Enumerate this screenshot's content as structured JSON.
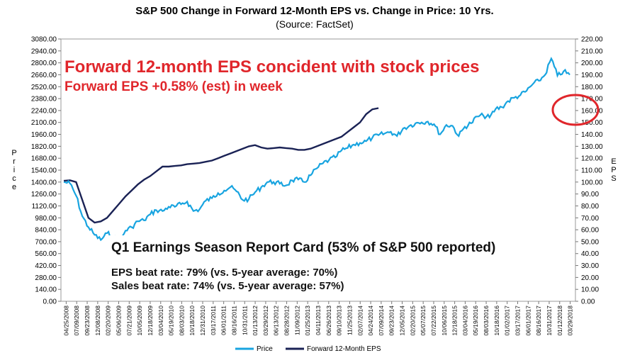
{
  "chart_data": {
    "type": "line",
    "title": "S&P 500 Change in Forward 12-Month EPS vs. Change in Price: 10 Yrs.",
    "subtitle": "(Source: FactSet)",
    "ylabel_left": "Price",
    "ylabel_right": "EPS",
    "left_axis": {
      "min": 0,
      "max": 3080,
      "step": 140,
      "ticks": [
        "0.00",
        "140.00",
        "280.00",
        "420.00",
        "560.00",
        "700.00",
        "840.00",
        "980.00",
        "1120.00",
        "1260.00",
        "1400.00",
        "1540.00",
        "1680.00",
        "1820.00",
        "1960.00",
        "2100.00",
        "2240.00",
        "2380.00",
        "2520.00",
        "2660.00",
        "2800.00",
        "2940.00",
        "3080.00"
      ]
    },
    "right_axis": {
      "min": 0,
      "max": 220,
      "step": 10,
      "ticks": [
        "0.00",
        "10.00",
        "20.00",
        "30.00",
        "40.00",
        "50.00",
        "60.00",
        "70.00",
        "80.00",
        "90.00",
        "100.00",
        "110.00",
        "120.00",
        "130.00",
        "140.00",
        "150.00",
        "160.00",
        "170.00",
        "180.00",
        "190.00",
        "200.00",
        "210.00",
        "220.00"
      ]
    },
    "x_tick_labels": [
      "04/25/2008",
      "07/09/2008",
      "09/23/2008",
      "12/08/2008",
      "02/20/2009",
      "05/06/2009",
      "07/21/2009",
      "10/05/2009",
      "12/18/2009",
      "03/04/2010",
      "05/19/2010",
      "08/03/2010",
      "10/18/2010",
      "12/31/2010",
      "03/17/2011",
      "06/01/2011",
      "08/16/2011",
      "10/31/2011",
      "01/13/2012",
      "03/29/2012",
      "06/13/2012",
      "08/28/2012",
      "11/09/2012",
      "01/25/2013",
      "04/11/2013",
      "06/26/2013",
      "09/10/2013",
      "11/25/2013",
      "02/07/2014",
      "04/24/2014",
      "07/09/2014",
      "09/23/2014",
      "12/05/2014",
      "02/20/2015",
      "05/07/2015",
      "07/22/2015",
      "10/06/2015",
      "12/18/2015",
      "03/04/2016",
      "05/19/2016",
      "08/03/2016",
      "10/18/2016",
      "01/02/2017",
      "03/17/2017",
      "06/01/2017",
      "08/16/2017",
      "10/31/2017",
      "01/12/2018",
      "03/29/2018"
    ],
    "series": [
      {
        "name": "Price",
        "color": "#18a4e0",
        "axis": "left",
        "points": [
          [
            0,
            1400
          ],
          [
            1,
            1385
          ],
          [
            2,
            1240
          ],
          [
            3,
            1000
          ],
          [
            4,
            870
          ],
          [
            5,
            780
          ],
          [
            6,
            720
          ],
          [
            7,
            800
          ],
          [
            8,
            760
          ],
          [
            9,
            690
          ],
          [
            10,
            830
          ],
          [
            11,
            870
          ],
          [
            12,
            940
          ],
          [
            13,
            950
          ],
          [
            14,
            1020
          ],
          [
            15,
            1070
          ],
          [
            16,
            1060
          ],
          [
            17,
            1110
          ],
          [
            18,
            1110
          ],
          [
            19,
            1140
          ],
          [
            20,
            1170
          ],
          [
            21,
            1060
          ],
          [
            22,
            1080
          ],
          [
            23,
            1180
          ],
          [
            24,
            1210
          ],
          [
            25,
            1270
          ],
          [
            26,
            1300
          ],
          [
            27,
            1340
          ],
          [
            28,
            1290
          ],
          [
            29,
            1190
          ],
          [
            30,
            1200
          ],
          [
            31,
            1280
          ],
          [
            32,
            1340
          ],
          [
            33,
            1400
          ],
          [
            34,
            1400
          ],
          [
            35,
            1380
          ],
          [
            36,
            1360
          ],
          [
            37,
            1420
          ],
          [
            38,
            1430
          ],
          [
            39,
            1400
          ],
          [
            40,
            1480
          ],
          [
            41,
            1560
          ],
          [
            42,
            1620
          ],
          [
            43,
            1660
          ],
          [
            44,
            1690
          ],
          [
            45,
            1770
          ],
          [
            46,
            1800
          ],
          [
            47,
            1840
          ],
          [
            48,
            1860
          ],
          [
            49,
            1880
          ],
          [
            50,
            1920
          ],
          [
            51,
            1950
          ],
          [
            52,
            1970
          ],
          [
            53,
            1990
          ],
          [
            54,
            1940
          ],
          [
            55,
            2030
          ],
          [
            56,
            2060
          ],
          [
            57,
            2090
          ],
          [
            58,
            2100
          ],
          [
            59,
            2110
          ],
          [
            60,
            2080
          ],
          [
            61,
            1960
          ],
          [
            62,
            2070
          ],
          [
            63,
            2060
          ],
          [
            64,
            1940
          ],
          [
            65,
            2050
          ],
          [
            66,
            2090
          ],
          [
            67,
            2170
          ],
          [
            68,
            2180
          ],
          [
            69,
            2160
          ],
          [
            70,
            2260
          ],
          [
            71,
            2280
          ],
          [
            72,
            2350
          ],
          [
            73,
            2390
          ],
          [
            74,
            2420
          ],
          [
            75,
            2470
          ],
          [
            76,
            2550
          ],
          [
            77,
            2590
          ],
          [
            78,
            2660
          ],
          [
            79,
            2850
          ],
          [
            80,
            2650
          ],
          [
            81,
            2700
          ],
          [
            82,
            2660
          ]
        ]
      },
      {
        "name": "Forward 12-Month EPS",
        "color": "#1a2255",
        "axis": "right",
        "points": [
          [
            0,
            101
          ],
          [
            1,
            101.5
          ],
          [
            2,
            100
          ],
          [
            3,
            85
          ],
          [
            4,
            70
          ],
          [
            5,
            66
          ],
          [
            6,
            67
          ],
          [
            7,
            70
          ],
          [
            8,
            76
          ],
          [
            9,
            82
          ],
          [
            10,
            88
          ],
          [
            11,
            93
          ],
          [
            12,
            98
          ],
          [
            13,
            102
          ],
          [
            14,
            105
          ],
          [
            15,
            109
          ],
          [
            16,
            113
          ],
          [
            17,
            113
          ],
          [
            18,
            113.5
          ],
          [
            19,
            114
          ],
          [
            20,
            115
          ],
          [
            21,
            115.5
          ],
          [
            22,
            116
          ],
          [
            23,
            117
          ],
          [
            24,
            118
          ],
          [
            25,
            120
          ],
          [
            26,
            122
          ],
          [
            27,
            124
          ],
          [
            28,
            126
          ],
          [
            29,
            128
          ],
          [
            30,
            130
          ],
          [
            31,
            131
          ],
          [
            32,
            129
          ],
          [
            33,
            128
          ],
          [
            34,
            128.5
          ],
          [
            35,
            129
          ],
          [
            36,
            128.5
          ],
          [
            37,
            128
          ],
          [
            38,
            127
          ],
          [
            39,
            127
          ],
          [
            40,
            128
          ],
          [
            41,
            130
          ],
          [
            42,
            132
          ],
          [
            43,
            134
          ],
          [
            44,
            136
          ],
          [
            45,
            138
          ],
          [
            46,
            142
          ],
          [
            47,
            146
          ],
          [
            48,
            150
          ],
          [
            49,
            157
          ],
          [
            50,
            161
          ],
          [
            51,
            162
          ]
        ]
      }
    ],
    "legend_position": "bottom-center",
    "annotations": [
      "Forward 12-month EPS concident with stock prices",
      "Forward EPS +0.58% (est) in week"
    ]
  },
  "report_card": {
    "title": "Q1 Earnings Season Report Card (53% of S&P 500 reported)",
    "eps_line": "EPS beat rate: 79% (vs. 5-year average: 70%)",
    "sales_line": "Sales beat rate: 74% (vs. 5-year average: 57%)"
  },
  "colors": {
    "price": "#18a4e0",
    "eps": "#1a2255",
    "highlight": "#e0262b"
  }
}
